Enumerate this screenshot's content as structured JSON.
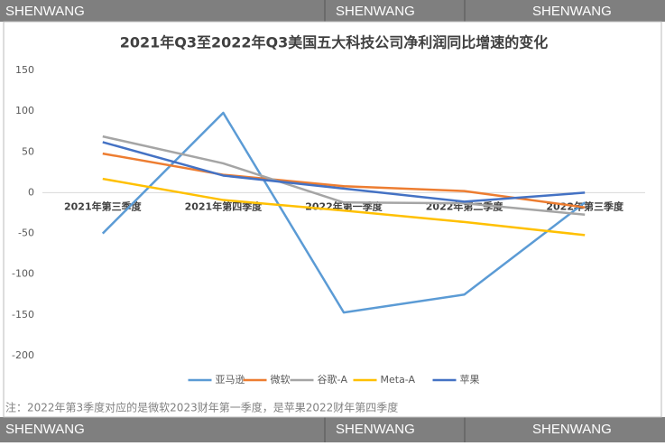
{
  "watermark": {
    "top": [
      "SHENWANG",
      "SHENWANG",
      "SHENWANG"
    ],
    "bottom": [
      "SHENWANG",
      "SHENWANG",
      "SHENWANG"
    ]
  },
  "chart_data": {
    "type": "line",
    "title": "2021年Q3至2022年Q3美国五大科技公司净利润同比增速的变化",
    "categories": [
      "2021年第三季度",
      "2021年第四季度",
      "2022年第一季度",
      "2022年第二季度",
      "2022年第三季度"
    ],
    "series": [
      {
        "name": "亚马逊",
        "color": "#5b9bd5",
        "values": [
          -50,
          98,
          -147,
          -125,
          -12
        ]
      },
      {
        "name": "微软",
        "color": "#ed7d31",
        "values": [
          48,
          22,
          8,
          2,
          -18
        ]
      },
      {
        "name": "谷歌-A",
        "color": "#a5a5a5",
        "values": [
          69,
          36,
          -12,
          -13,
          -27
        ]
      },
      {
        "name": "Meta-A",
        "color": "#ffc000",
        "values": [
          17,
          -9,
          -22,
          -36,
          -52
        ]
      },
      {
        "name": "苹果",
        "color": "#4472c4",
        "values": [
          62,
          21,
          5,
          -11,
          0
        ]
      }
    ],
    "ylim": [
      -200,
      150
    ],
    "yticks": [
      -200,
      -150,
      -100,
      -50,
      0,
      50,
      100,
      150
    ],
    "note": "注：2022年第3季度对应的是微软2023财年第一季度，是苹果2022财年第四季度"
  }
}
